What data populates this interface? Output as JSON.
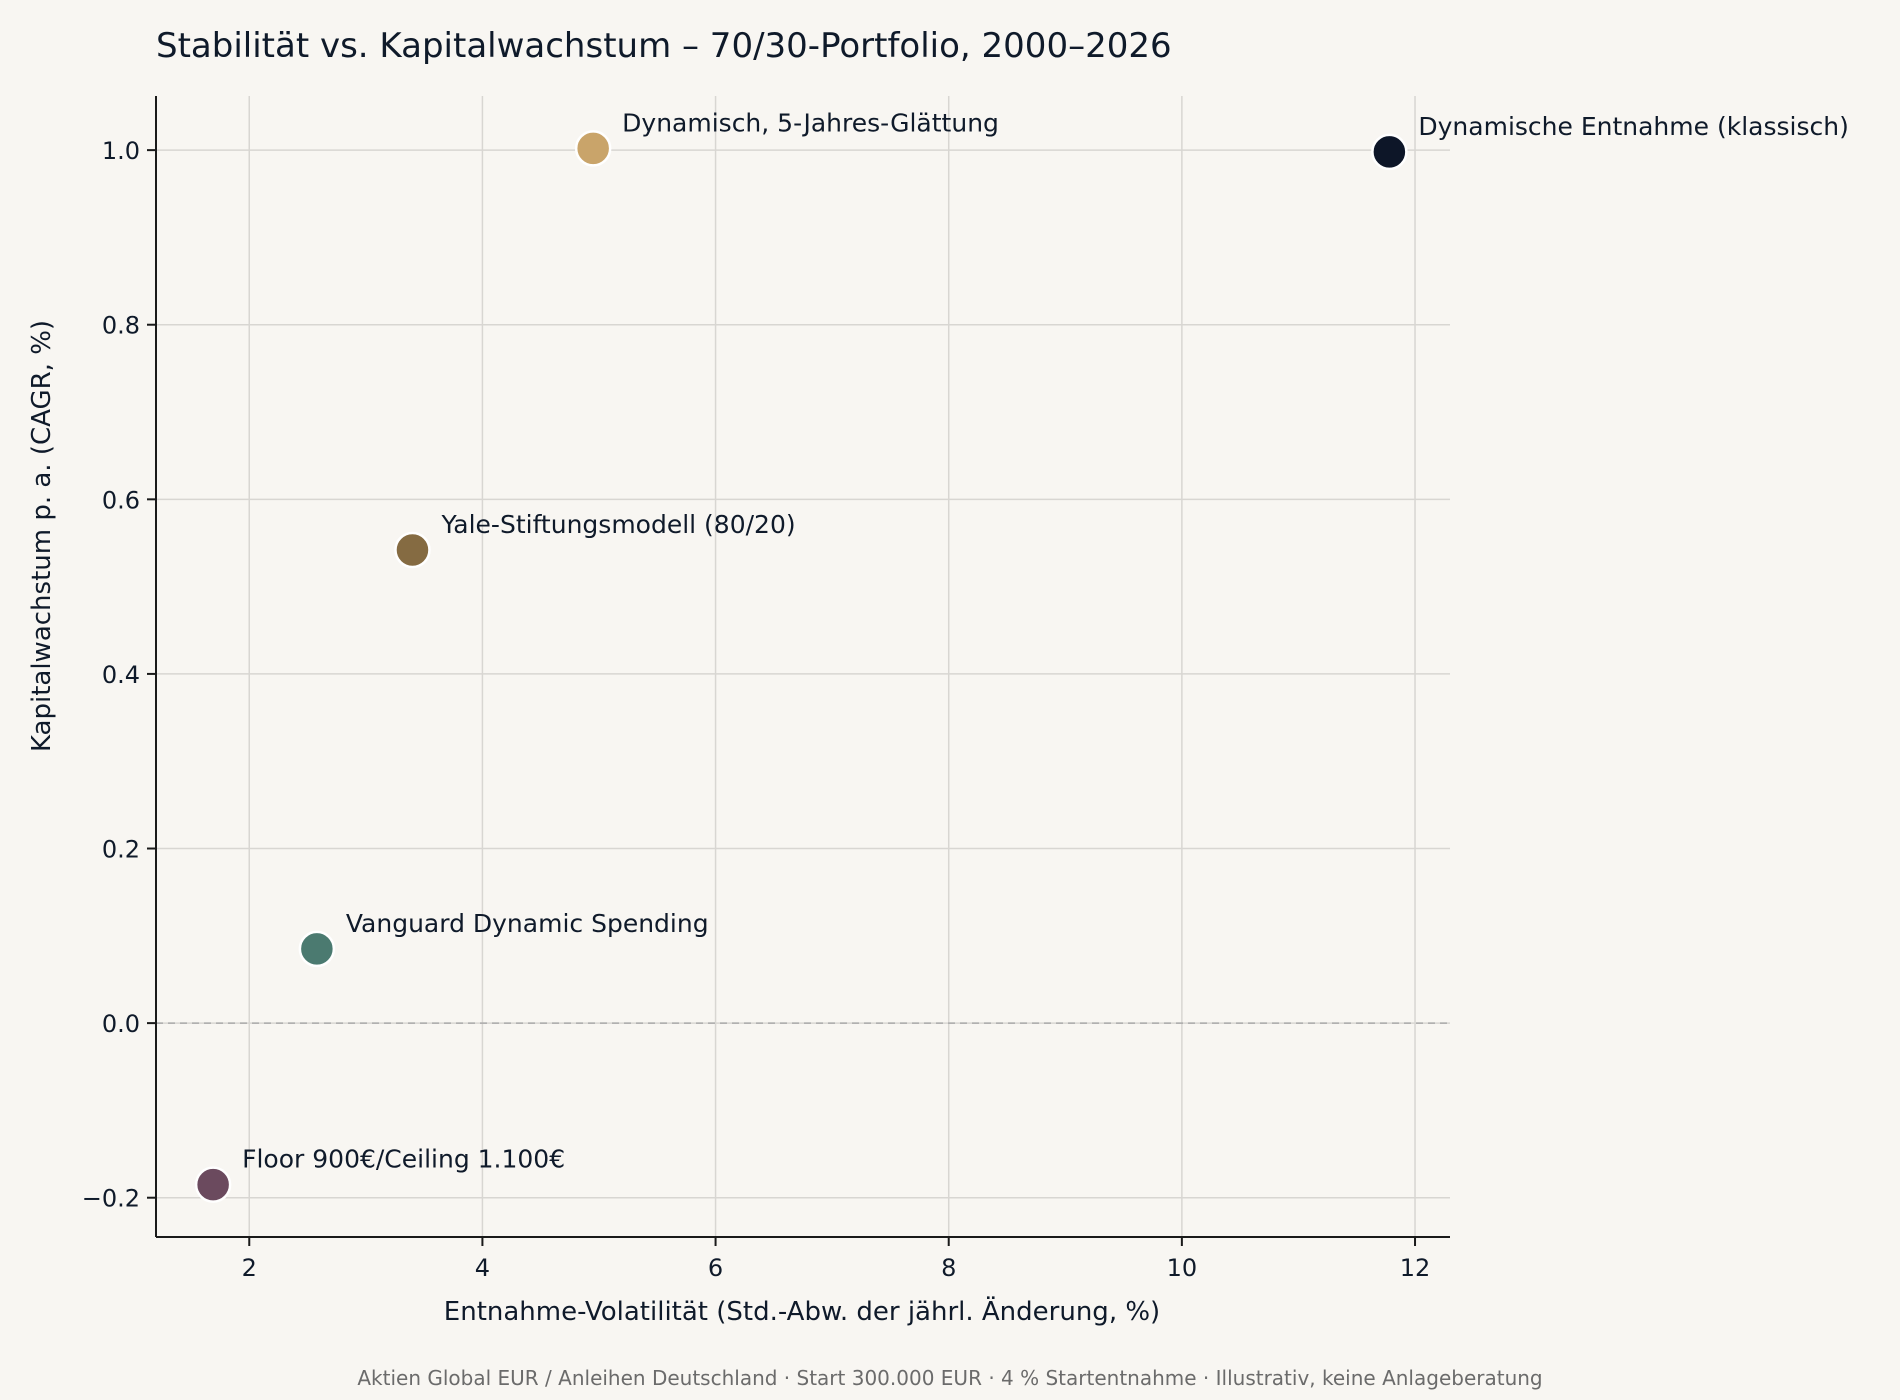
{
  "chart_data": {
    "type": "scatter",
    "title": "Stabilität vs. Kapitalwachstum – 70/30-Portfolio, 2000–2026",
    "xlabel": "Entnahme-Volatilität (Std.-Abw. der jährl. Änderung, %)",
    "ylabel": "Kapitalwachstum p. a. (CAGR, %)",
    "xlim": [
      1.2,
      12.3
    ],
    "ylim": [
      -0.245,
      1.062
    ],
    "x_ticks": [
      2,
      4,
      6,
      8,
      10,
      12
    ],
    "x_tick_labels": [
      "2",
      "4",
      "6",
      "8",
      "10",
      "12"
    ],
    "y_ticks": [
      -0.2,
      0.0,
      0.2,
      0.4,
      0.6,
      0.8,
      1.0
    ],
    "y_tick_labels": [
      "−0.2",
      "0.0",
      "0.2",
      "0.4",
      "0.6",
      "0.8",
      "1.0"
    ],
    "grid": true,
    "reference_line": {
      "y": 0.0,
      "style": "dashed"
    },
    "points": [
      {
        "label": "Dynamisch, 5-Jahres-Glättung",
        "x": 4.95,
        "y": 1.002,
        "color": "#c9a46a"
      },
      {
        "label": "Dynamische Entnahme (klassisch)",
        "x": 11.78,
        "y": 0.998,
        "color": "#0d1628"
      },
      {
        "label": "Yale-Stiftungsmodell (80/20)",
        "x": 3.4,
        "y": 0.542,
        "color": "#856b42"
      },
      {
        "label": "Vanguard Dynamic Spending",
        "x": 2.58,
        "y": 0.085,
        "color": "#4b7a70"
      },
      {
        "label": "Floor 900€/Ceiling 1.100€",
        "x": 1.69,
        "y": -0.185,
        "color": "#6b4a5e"
      }
    ],
    "footnote": "Aktien Global EUR / Anleihen Deutschland · Start 300.000 EUR · 4 % Startentnahme · Illustrativ, keine Anlageberatung"
  }
}
